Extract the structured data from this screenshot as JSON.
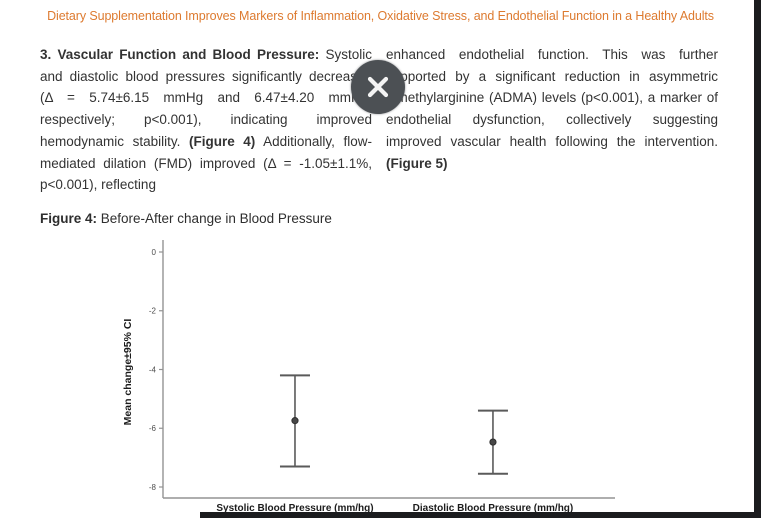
{
  "page": {
    "title": "Dietary Supplementation Improves Markers of Inflammation, Oxidative Stress, and Endothelial Function in a Healthy Adults",
    "title_color": "#dd7a2f"
  },
  "body": {
    "left_column_segments": [
      {
        "t": "3. Vascular Function and Blood Pressure:",
        "b": true
      },
      {
        "t": " Systolic and diastolic blood pressures significantly decreased (Δ = 5.74±6.15 mmHg and 6.47±4.20 mmHg, respectively; p<0.001), indicating improved hemodynamic stability. ",
        "b": false
      },
      {
        "t": "(Figure 4)",
        "b": true
      },
      {
        "t": " Additionally, flow-mediated dilation (FMD) improved (Δ = -1.05±1.1%, p<0.001), reflecting",
        "b": false
      }
    ],
    "right_column_segments": [
      {
        "t": "enhanced endothelial function. This was further supported by a significant reduction in asymmetric dimethylarginine (ADMA) levels (p<0.001), a marker of endothelial dysfunction, collectively suggesting improved vascular health following the intervention. ",
        "b": false
      },
      {
        "t": "(Figure 5)",
        "b": true
      }
    ]
  },
  "overlay": {
    "close_button": {
      "icon": "x-icon",
      "bg": "#4c5054"
    }
  },
  "figure_caption": {
    "label": "Figure 4:",
    "text": " Before-After change in Blood Pressure"
  },
  "chart_data": {
    "type": "errorbar",
    "title": "Before-After change in Blood Pressure",
    "xlabel": "",
    "ylabel": "Mean change±95% CI",
    "ylim": [
      -8.4,
      0.4
    ],
    "yticks": [
      0,
      -2,
      -4,
      -6,
      -8
    ],
    "grid": false,
    "legend": false,
    "categories": [
      "Systolic Blood Pressure (mm/hg)",
      "Diastolic Blood Pressure (mm/hg)"
    ],
    "series": [
      {
        "name": "Mean change ± 95% CI",
        "points": [
          {
            "mean": -5.74,
            "ci_low": -7.3,
            "ci_high": -4.2
          },
          {
            "mean": -6.47,
            "ci_low": -7.55,
            "ci_high": -5.4
          }
        ]
      }
    ]
  }
}
